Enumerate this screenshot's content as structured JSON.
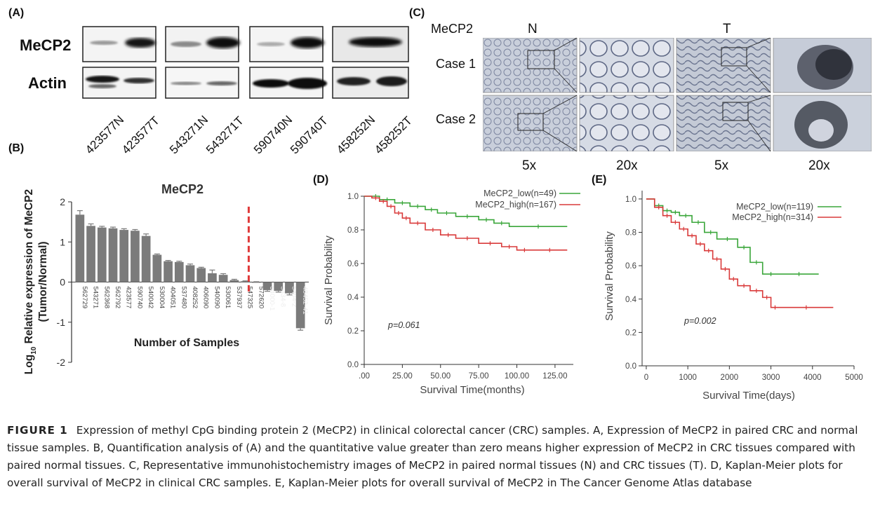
{
  "panel_a": {
    "label": "(A)",
    "row_labels": [
      "MeCP2",
      "Actin"
    ],
    "samples": [
      "423577N",
      "423577T",
      "543271N",
      "543271T",
      "590740N",
      "590740T",
      "458252N",
      "458252T"
    ]
  },
  "panel_b": {
    "label": "(B)"
  },
  "panel_c": {
    "label": "(C)",
    "marker": "MeCP2",
    "col_groups": [
      "N",
      "T"
    ],
    "rows": [
      "Case 1",
      "Case 2"
    ],
    "magnifications": [
      "5x",
      "20x",
      "5x",
      "20x"
    ]
  },
  "panel_d": {
    "label": "(D)"
  },
  "panel_e": {
    "label": "(E)"
  },
  "chart_data": [
    {
      "type": "bar",
      "panel": "B",
      "title": "MeCP2",
      "xlabel": "Number of Samples",
      "ylabel_line1": "Log10 Relative expression of MeCP2",
      "ylabel_sub": "10",
      "ylabel_line2": "(Tumor/Normal)",
      "ylim": [
        -2,
        2
      ],
      "yticks": [
        "2",
        "1",
        "0",
        "-1",
        "-2"
      ],
      "categories": [
        "562729",
        "543271",
        "562368",
        "562792",
        "423577",
        "590740",
        "540042",
        "530004",
        "404051",
        "537480",
        "408252",
        "406090",
        "540090",
        "530061",
        "537937",
        "547325",
        "572620",
        "54000-1",
        "5434-8",
        "5404-2",
        "48452-41"
      ],
      "values": [
        1.68,
        1.4,
        1.36,
        1.34,
        1.3,
        1.28,
        1.15,
        0.68,
        0.52,
        0.5,
        0.42,
        0.35,
        0.22,
        0.18,
        0.05,
        0.02,
        0.0,
        -0.2,
        -0.22,
        -0.28,
        -1.15
      ],
      "errors": [
        0.1,
        0.05,
        0.03,
        0.03,
        0.03,
        0.03,
        0.05,
        0.02,
        0.02,
        0.02,
        0.03,
        0.02,
        0.08,
        0.03,
        0.02,
        0.01,
        0.01,
        0.03,
        0.03,
        0.04,
        0.05
      ],
      "cutoff_index": 16,
      "bar_color": "#7b7b7b",
      "cutoff_color": "#e03a3a"
    },
    {
      "type": "line",
      "panel": "D",
      "xlabel": "Survival Time(months)",
      "ylabel": "Survival Probability",
      "xlim": [
        0,
        137
      ],
      "ylim": [
        0,
        1.0
      ],
      "xticks": [
        ".00",
        "25.00",
        "50.00",
        "75.00",
        "100.00",
        "125.00"
      ],
      "xtick_values": [
        0,
        25,
        50,
        75,
        100,
        125
      ],
      "yticks": [
        "0.0",
        "0.2",
        "0.4",
        "0.6",
        "0.8",
        "1.0"
      ],
      "annotation": "p=0.061",
      "series": [
        {
          "name": "MeCP2_low(n=49)",
          "color": "#3aa63a",
          "x": [
            0,
            5,
            10,
            20,
            30,
            40,
            48,
            60,
            75,
            85,
            95,
            133
          ],
          "y": [
            1.0,
            1.0,
            0.98,
            0.96,
            0.94,
            0.92,
            0.9,
            0.88,
            0.86,
            0.84,
            0.82,
            0.82
          ]
        },
        {
          "name": "MeCP2_high(n=167)",
          "color": "#d93a3a",
          "x": [
            0,
            5,
            10,
            15,
            20,
            25,
            30,
            40,
            50,
            60,
            75,
            90,
            100,
            110,
            133
          ],
          "y": [
            1.0,
            0.99,
            0.97,
            0.94,
            0.9,
            0.87,
            0.84,
            0.8,
            0.77,
            0.75,
            0.72,
            0.7,
            0.68,
            0.68,
            0.68
          ]
        }
      ],
      "legend_position": "top-right"
    },
    {
      "type": "line",
      "panel": "E",
      "xlabel": "Survival Time(days)",
      "ylabel": "Survival Probability",
      "xlim": [
        -100,
        5000
      ],
      "ylim": [
        0,
        1.05
      ],
      "xticks": [
        "0",
        "1000",
        "2000",
        "3000",
        "4000",
        "5000"
      ],
      "xtick_values": [
        0,
        1000,
        2000,
        3000,
        4000,
        5000
      ],
      "yticks": [
        "0.0",
        "0.2",
        "0.4",
        "0.6",
        "0.8",
        "1.0"
      ],
      "annotation": "p=0.002",
      "series": [
        {
          "name": "MeCP2_low(n=119)",
          "color": "#3aa63a",
          "x": [
            0,
            200,
            400,
            600,
            800,
            1100,
            1400,
            1700,
            2200,
            2500,
            2800,
            3200,
            4150
          ],
          "y": [
            1.0,
            0.96,
            0.93,
            0.92,
            0.9,
            0.86,
            0.8,
            0.76,
            0.71,
            0.62,
            0.55,
            0.55,
            0.55
          ]
        },
        {
          "name": "MeCP2_high(n=314)",
          "color": "#d93a3a",
          "x": [
            0,
            200,
            400,
            600,
            800,
            1000,
            1200,
            1400,
            1600,
            1800,
            2000,
            2200,
            2500,
            2800,
            3000,
            3200,
            4500
          ],
          "y": [
            1.0,
            0.95,
            0.9,
            0.86,
            0.82,
            0.78,
            0.73,
            0.69,
            0.64,
            0.58,
            0.52,
            0.48,
            0.45,
            0.41,
            0.35,
            0.35,
            0.35
          ]
        }
      ],
      "legend_position": "top-right"
    }
  ],
  "caption": {
    "fig_label": "FIGURE 1",
    "text": "Expression of methyl CpG binding protein 2 (MeCP2) in clinical colorectal cancer (CRC) samples. A, Expression of MeCP2 in paired CRC and normal tissue samples. B, Quantification analysis of (A) and the quantitative value greater than zero means higher expression of MeCP2 in CRC tissues compared with paired normal tissues. C, Representative immunohistochemistry images of MeCP2 in paired normal tissues (N) and CRC tissues (T). D, Kaplan-Meier plots for overall survival of MeCP2 in clinical CRC samples. E, Kaplan-Meier plots for overall survival of MeCP2 in The Cancer Genome Atlas database"
  }
}
